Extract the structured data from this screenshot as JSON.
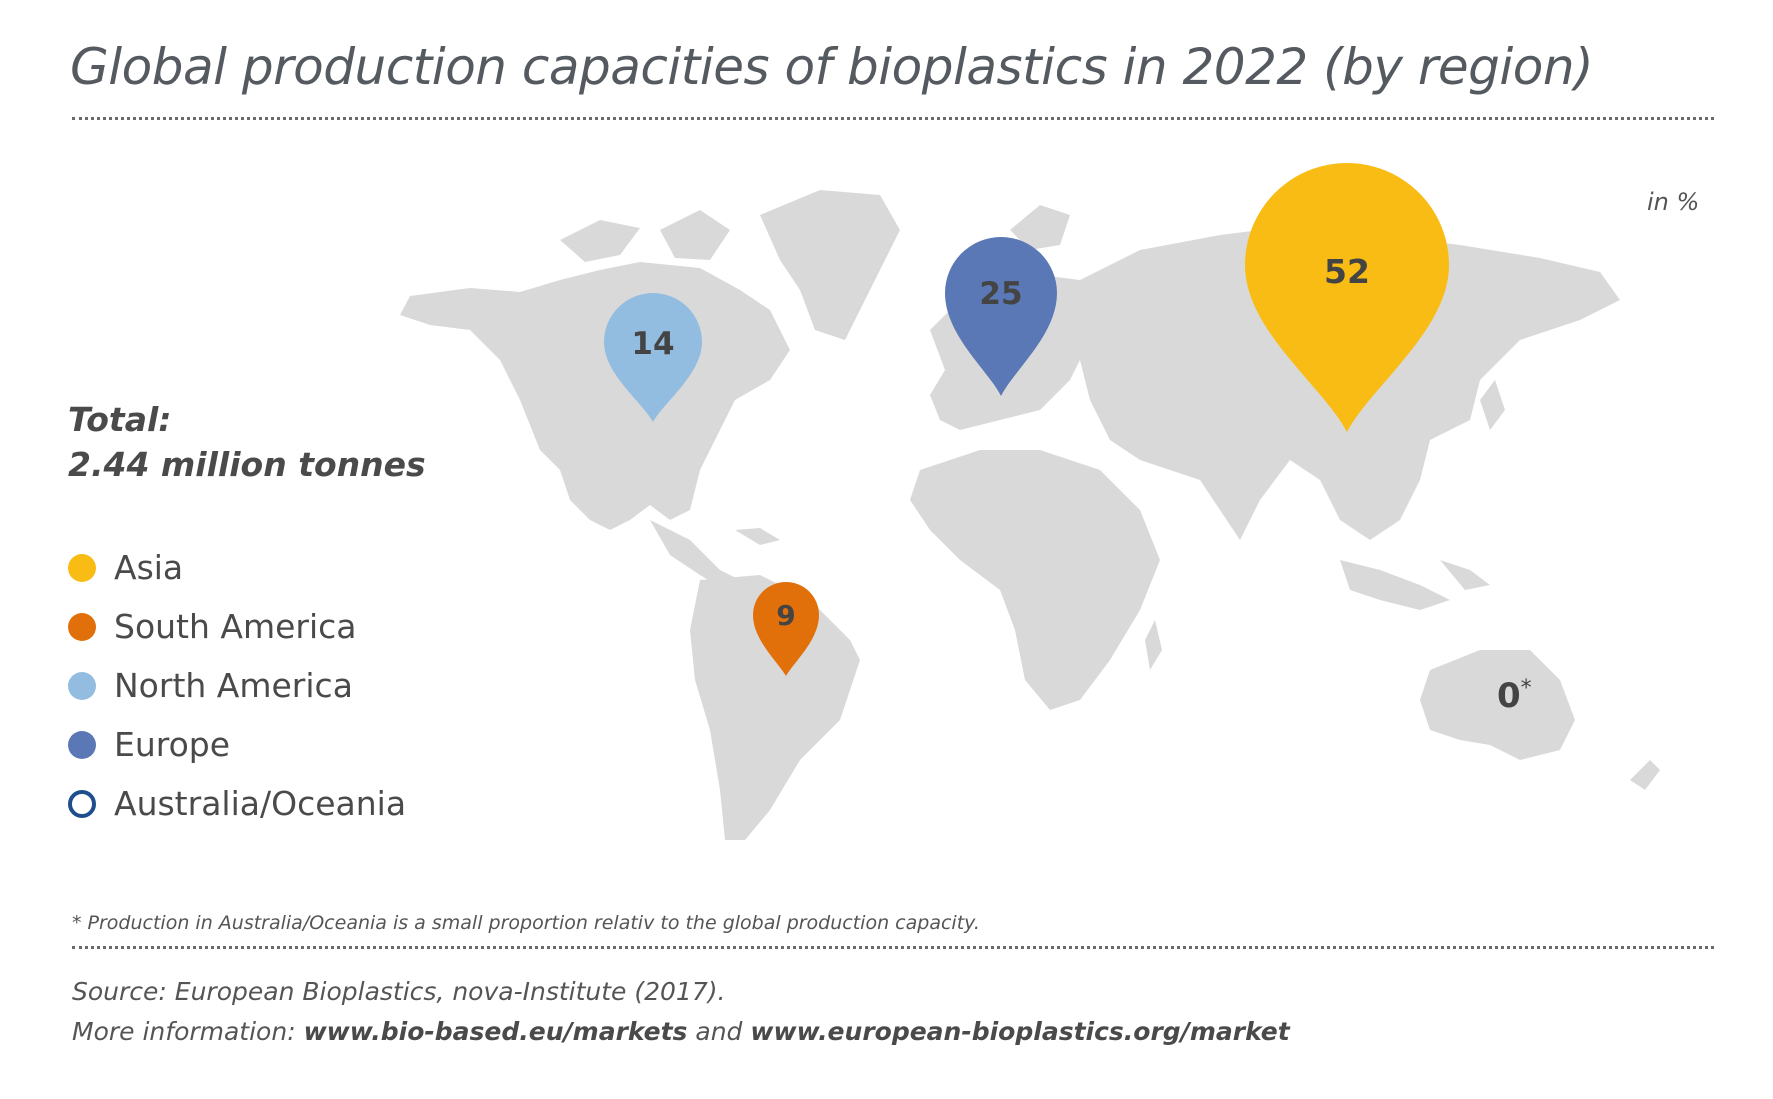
{
  "title": "Global production capacities of bioplastics in 2022 (by region)",
  "unit_label": "in %",
  "total": {
    "label": "Total:",
    "value": "2.44 million tonnes"
  },
  "legend": [
    {
      "label": "Asia",
      "color": "#f9bc15",
      "outlined": false
    },
    {
      "label": "South America",
      "color": "#e1700b",
      "outlined": false
    },
    {
      "label": "North America",
      "color": "#93bde0",
      "outlined": false
    },
    {
      "label": "Europe",
      "color": "#5b78b6",
      "outlined": false
    },
    {
      "label": "Australia/Oceania",
      "color": "#1f4e8c",
      "outlined": true
    }
  ],
  "regions": [
    {
      "name": "Asia",
      "value": "52",
      "color": "#f9bc15"
    },
    {
      "name": "Europe",
      "value": "25",
      "color": "#5b78b6"
    },
    {
      "name": "North America",
      "value": "14",
      "color": "#93bde0"
    },
    {
      "name": "South America",
      "value": "9",
      "color": "#e1700b"
    },
    {
      "name": "Australia/Oceania",
      "value": "0",
      "marker": "*"
    }
  ],
  "footnote": "* Production in Australia/Oceania is a small proportion relativ to the global production capacity.",
  "source": {
    "line1": "Source: European Bioplastics, nova-Institute (2017).",
    "line2_prefix": "More information: ",
    "link1": "www.bio-based.eu/markets",
    "line2_mid": " and ",
    "link2": "www.european-bioplastics.org/market"
  },
  "map_color": "#d9d9da"
}
